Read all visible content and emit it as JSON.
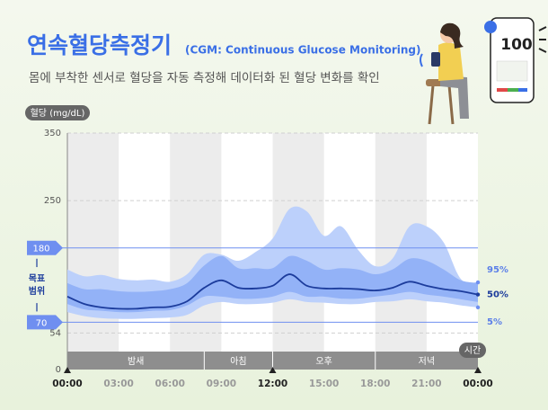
{
  "chart_data": {
    "type": "band",
    "title": "연속혈당측정기",
    "title_note": "(CGM: Continuous Glucose Monitoring)",
    "subtitle": "몸에 부착한 센서로 혈당을 자동 측정해 데이터화 된 혈당 변화를 확인",
    "y_label": "혈당 (mg/dL)",
    "x_label": "시간",
    "x": [
      0,
      1,
      2,
      3,
      4,
      5,
      6,
      7,
      8,
      9,
      10,
      11,
      12,
      13,
      14,
      15,
      16,
      17,
      18,
      19,
      20,
      21,
      22,
      23,
      24
    ],
    "xlim": [
      0,
      24
    ],
    "xticks": [
      {
        "value": 0,
        "label": "00:00"
      },
      {
        "value": 3,
        "label": "03:00"
      },
      {
        "value": 6,
        "label": "06:00"
      },
      {
        "value": 9,
        "label": "09:00"
      },
      {
        "value": 12,
        "label": "12:00"
      },
      {
        "value": 15,
        "label": "15:00"
      },
      {
        "value": 18,
        "label": "18:00"
      },
      {
        "value": 21,
        "label": "21:00"
      },
      {
        "value": 24,
        "label": "00:00"
      }
    ],
    "ylim": [
      0,
      350
    ],
    "yticks": [
      0,
      54,
      250,
      350
    ],
    "target_range": [
      70,
      180
    ],
    "target_label": [
      "목표",
      "범위"
    ],
    "periods": [
      {
        "label": "밤새",
        "start": 0,
        "end": 8
      },
      {
        "label": "아침",
        "start": 8,
        "end": 12
      },
      {
        "label": "오후",
        "start": 12,
        "end": 18
      },
      {
        "label": "저녁",
        "start": 18,
        "end": 24
      }
    ],
    "series": [
      {
        "name": "95%",
        "color": "#bcd0fb",
        "values": [
          148,
          138,
          140,
          134,
          132,
          133,
          130,
          141,
          170,
          170,
          161,
          174,
          194,
          238,
          234,
          198,
          212,
          177,
          153,
          164,
          212,
          212,
          188,
          134,
          129
        ]
      },
      {
        "color": "#93b2f7",
        "values": [
          128,
          119,
          119,
          116,
          115,
          116,
          119,
          128,
          154,
          168,
          150,
          150,
          150,
          168,
          161,
          148,
          150,
          148,
          141,
          148,
          164,
          161,
          148,
          132,
          128
        ]
      },
      {
        "name": "50%",
        "color": "#1c3c9c",
        "values": [
          108,
          97,
          92,
          90,
          90,
          92,
          93,
          101,
          121,
          132,
          121,
          120,
          124,
          141,
          124,
          120,
          120,
          119,
          117,
          121,
          130,
          124,
          119,
          116,
          111
        ]
      },
      {
        "color": "#93b2f7",
        "values": [
          97,
          89,
          87,
          85,
          85,
          87,
          88,
          95,
          108,
          108,
          105,
          105,
          108,
          115,
          108,
          108,
          105,
          105,
          108,
          111,
          115,
          111,
          108,
          104,
          100
        ]
      },
      {
        "name": "5%",
        "color": "#bcd0fb",
        "values": [
          85,
          79,
          76,
          75,
          75,
          76,
          77,
          81,
          95,
          100,
          97,
          97,
          99,
          104,
          100,
          99,
          97,
          97,
          100,
          101,
          104,
          101,
          99,
          95,
          92
        ]
      }
    ]
  },
  "illustration": {
    "reading": "100"
  }
}
